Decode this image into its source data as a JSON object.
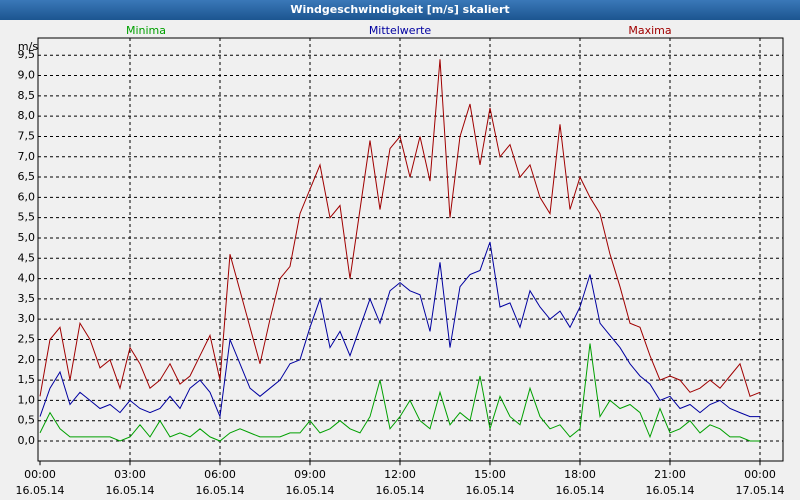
{
  "chart_data": {
    "type": "line",
    "title": "Windgeschwindigkeit [m/s] skaliert",
    "y_label": "m/s",
    "x": [
      0,
      20,
      40,
      60,
      80,
      100,
      120,
      140,
      160,
      180,
      200,
      220,
      240,
      260,
      280,
      300,
      320,
      340,
      360,
      380,
      400,
      420,
      440,
      460,
      480,
      500,
      520,
      540,
      560,
      580,
      600,
      620,
      640,
      660,
      680,
      700,
      720,
      740,
      760,
      780,
      800,
      820,
      840,
      860,
      880,
      900,
      920,
      940,
      960,
      980,
      1000,
      1020,
      1040,
      1060,
      1080,
      1100,
      1120,
      1140,
      1160,
      1180,
      1200,
      1220,
      1240,
      1260,
      1280,
      1300,
      1320,
      1340,
      1360,
      1380,
      1400,
      1420,
      1440
    ],
    "xlim": [
      0,
      1440
    ],
    "xticks": [
      {
        "value": 0,
        "label": "00:00"
      },
      {
        "value": 180,
        "label": "03:00"
      },
      {
        "value": 360,
        "label": "06:00"
      },
      {
        "value": 540,
        "label": "09:00"
      },
      {
        "value": 720,
        "label": "12:00"
      },
      {
        "value": 900,
        "label": "15:00"
      },
      {
        "value": 1080,
        "label": "18:00"
      },
      {
        "value": 1260,
        "label": "21:00"
      },
      {
        "value": 1440,
        "label": "00:00"
      }
    ],
    "xtick_dates": [
      "16.05.14",
      "16.05.14",
      "16.05.14",
      "16.05.14",
      "16.05.14",
      "16.05.14",
      "16.05.14",
      "16.05.14",
      "17.05.14"
    ],
    "ylim": [
      -0.5,
      9.9
    ],
    "yticks": [
      {
        "value": 0,
        "label": "0,0"
      },
      {
        "value": 0.5,
        "label": "0,5"
      },
      {
        "value": 1,
        "label": "1,0"
      },
      {
        "value": 1.5,
        "label": "1,5"
      },
      {
        "value": 2,
        "label": "2,0"
      },
      {
        "value": 2.5,
        "label": "2,5"
      },
      {
        "value": 3,
        "label": "3,0"
      },
      {
        "value": 3.5,
        "label": "3,5"
      },
      {
        "value": 4,
        "label": "4,0"
      },
      {
        "value": 4.5,
        "label": "4,5"
      },
      {
        "value": 5,
        "label": "5,0"
      },
      {
        "value": 5.5,
        "label": "5,5"
      },
      {
        "value": 6,
        "label": "6,0"
      },
      {
        "value": 6.5,
        "label": "6,5"
      },
      {
        "value": 7,
        "label": "7,0"
      },
      {
        "value": 7.5,
        "label": "7,5"
      },
      {
        "value": 8,
        "label": "8,0"
      },
      {
        "value": 8.5,
        "label": "8,5"
      },
      {
        "value": 9,
        "label": "9,0"
      },
      {
        "value": 9.5,
        "label": "9,5"
      }
    ],
    "grid": true,
    "series": [
      {
        "name": "Minima",
        "color": "#00a000",
        "values": [
          0.2,
          0.7,
          0.3,
          0.1,
          0.1,
          0.1,
          0.1,
          0.1,
          0.0,
          0.1,
          0.4,
          0.1,
          0.5,
          0.1,
          0.2,
          0.1,
          0.3,
          0.1,
          0.0,
          0.2,
          0.3,
          0.2,
          0.1,
          0.1,
          0.1,
          0.2,
          0.2,
          0.5,
          0.2,
          0.3,
          0.5,
          0.3,
          0.2,
          0.6,
          1.5,
          0.3,
          0.6,
          1.0,
          0.5,
          0.3,
          1.2,
          0.4,
          0.7,
          0.5,
          1.6,
          0.3,
          1.1,
          0.6,
          0.4,
          1.3,
          0.6,
          0.3,
          0.4,
          0.1,
          0.3,
          2.4,
          0.6,
          1.0,
          0.8,
          0.9,
          0.7,
          0.1,
          0.8,
          0.2,
          0.3,
          0.5,
          0.2,
          0.4,
          0.3,
          0.1,
          0.1,
          0.0,
          0.0
        ]
      },
      {
        "name": "Mittelwerte",
        "color": "#0000a0",
        "values": [
          0.6,
          1.3,
          1.7,
          0.9,
          1.2,
          1.0,
          0.8,
          0.9,
          0.7,
          1.0,
          0.8,
          0.7,
          0.8,
          1.1,
          0.8,
          1.3,
          1.5,
          1.2,
          0.6,
          2.5,
          1.9,
          1.3,
          1.1,
          1.3,
          1.5,
          1.9,
          2.0,
          2.8,
          3.5,
          2.3,
          2.7,
          2.1,
          2.8,
          3.5,
          2.9,
          3.7,
          3.9,
          3.7,
          3.6,
          2.7,
          4.4,
          2.3,
          3.8,
          4.1,
          4.2,
          4.9,
          3.3,
          3.4,
          2.8,
          3.7,
          3.3,
          3.0,
          3.2,
          2.8,
          3.3,
          4.1,
          2.9,
          2.6,
          2.3,
          1.9,
          1.6,
          1.4,
          1.0,
          1.1,
          0.8,
          0.9,
          0.7,
          0.9,
          1.0,
          0.8,
          0.7,
          0.6,
          0.6
        ]
      },
      {
        "name": "Maxima",
        "color": "#a00000",
        "values": [
          1.1,
          2.5,
          2.8,
          1.5,
          2.9,
          2.5,
          1.8,
          2.0,
          1.3,
          2.3,
          1.9,
          1.3,
          1.5,
          1.9,
          1.4,
          1.6,
          2.1,
          2.6,
          1.5,
          4.6,
          3.7,
          2.8,
          1.9,
          3.0,
          4.0,
          4.3,
          5.6,
          6.2,
          6.8,
          5.5,
          5.8,
          4.0,
          5.7,
          7.4,
          5.7,
          7.2,
          7.5,
          6.5,
          7.5,
          6.4,
          9.4,
          5.5,
          7.5,
          8.3,
          6.8,
          8.2,
          7.0,
          7.3,
          6.5,
          6.8,
          6.0,
          5.6,
          7.8,
          5.7,
          6.5,
          6.0,
          5.6,
          4.6,
          3.8,
          2.9,
          2.8,
          2.1,
          1.5,
          1.6,
          1.5,
          1.2,
          1.3,
          1.5,
          1.3,
          1.6,
          1.9,
          1.1,
          1.2
        ]
      }
    ]
  }
}
